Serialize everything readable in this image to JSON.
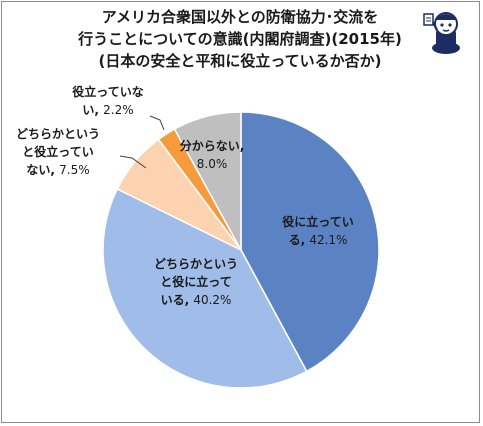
{
  "chart_data": {
    "type": "pie",
    "title": [
      "アメリカ合衆国以外との防衛協力･交流を",
      "行うことについての意識(内閣府調査)(2015年)",
      "(日本の安全と平和に役立っているか否か)"
    ],
    "start_angle_deg": 0,
    "direction": "clockwise",
    "slices": [
      {
        "name": "役に立っている",
        "value": 42.1,
        "color": "#5b83c4",
        "label_lines": [
          "役に立ってい",
          "る"
        ],
        "value_text": "42.1%"
      },
      {
        "name": "どちらかというと役に立っている",
        "value": 40.2,
        "color": "#9fbde8",
        "label_lines": [
          "どちらかという",
          "と役に立って",
          "いる"
        ],
        "value_text": "40.2%"
      },
      {
        "name": "どちらかというと役立っていない",
        "value": 7.5,
        "color": "#fcd2b0",
        "label_lines": [
          "どちらかという",
          "と役立ってい",
          "ない"
        ],
        "value_text": "7.5%"
      },
      {
        "name": "役立っていない",
        "value": 2.2,
        "color": "#f59b3c",
        "label_lines": [
          "役立っていな",
          "い"
        ],
        "value_text": "2.2%"
      },
      {
        "name": "分からない",
        "value": 8.0,
        "color": "#bfbfbf",
        "label_lines": [
          "分からない,",
          ""
        ],
        "value_text": "8.0%"
      }
    ]
  }
}
